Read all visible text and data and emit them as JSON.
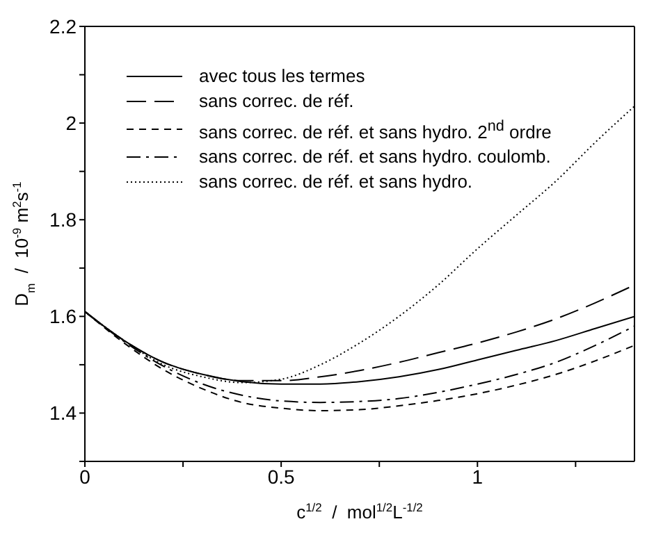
{
  "chart_data": {
    "type": "line",
    "xlabel": "c$^{1/2}$  /  mol$^{1/2}$L$^{-1/2}$",
    "ylabel": "D$_{m}$  /  10$^{-9}$ m$^{2}$s$^{-1}$",
    "x": [
      0,
      0.1,
      0.2,
      0.3,
      0.4,
      0.5,
      0.6,
      0.7,
      0.8,
      0.9,
      1.0,
      1.1,
      1.2,
      1.3,
      1.4
    ],
    "series": [
      {
        "name": "avec tous les termes",
        "color": "#000000",
        "line_style": "solid",
        "values": [
          1.61,
          1.55,
          1.505,
          1.48,
          1.465,
          1.46,
          1.46,
          1.465,
          1.475,
          1.49,
          1.51,
          1.53,
          1.55,
          1.575,
          1.6
        ]
      },
      {
        "name": "sans correc. de réf.",
        "color": "#000000",
        "line_style": "long_dashed",
        "values": [
          1.61,
          1.55,
          1.505,
          1.48,
          1.467,
          1.467,
          1.475,
          1.488,
          1.505,
          1.525,
          1.545,
          1.568,
          1.595,
          1.628,
          1.665
        ]
      },
      {
        "name": "sans correc. de réf. et sans hydro. 2$^{nd}$ ordre",
        "color": "#000000",
        "line_style": "dashed",
        "values": [
          1.61,
          1.545,
          1.49,
          1.45,
          1.422,
          1.41,
          1.405,
          1.407,
          1.415,
          1.426,
          1.44,
          1.458,
          1.48,
          1.508,
          1.54
        ]
      },
      {
        "name": "sans correc. de réf. et sans hydro. coulomb.",
        "color": "#000000",
        "line_style": "dash_dot",
        "values": [
          1.61,
          1.548,
          1.497,
          1.46,
          1.437,
          1.425,
          1.422,
          1.424,
          1.43,
          1.443,
          1.46,
          1.48,
          1.505,
          1.54,
          1.58
        ]
      },
      {
        "name": "sans correc. de réf. et sans hydro.",
        "color": "#000000",
        "line_style": "dotted",
        "values": [
          1.61,
          1.55,
          1.5,
          1.475,
          1.463,
          1.47,
          1.5,
          1.545,
          1.6,
          1.665,
          1.74,
          1.81,
          1.88,
          1.96,
          2.035
        ]
      }
    ],
    "xlim": [
      0,
      1.4
    ],
    "xticks": [
      0,
      {
        "value": 0.25,
        "label": null
      },
      0.5,
      {
        "value": 0.75,
        "label": null
      },
      1,
      {
        "value": 1.25,
        "label": null
      }
    ],
    "ylim": [
      1.3,
      2.2
    ],
    "yticks": [
      {
        "value": 1.3,
        "label": null
      },
      1.4,
      {
        "value": 1.5,
        "label": null
      },
      1.6,
      {
        "value": 1.7,
        "label": null
      },
      1.8,
      {
        "value": 1.9,
        "label": null
      },
      2,
      {
        "value": 2.1,
        "label": null
      },
      2.2
    ],
    "legend": "top left",
    "grid": false,
    "marker": "none"
  }
}
